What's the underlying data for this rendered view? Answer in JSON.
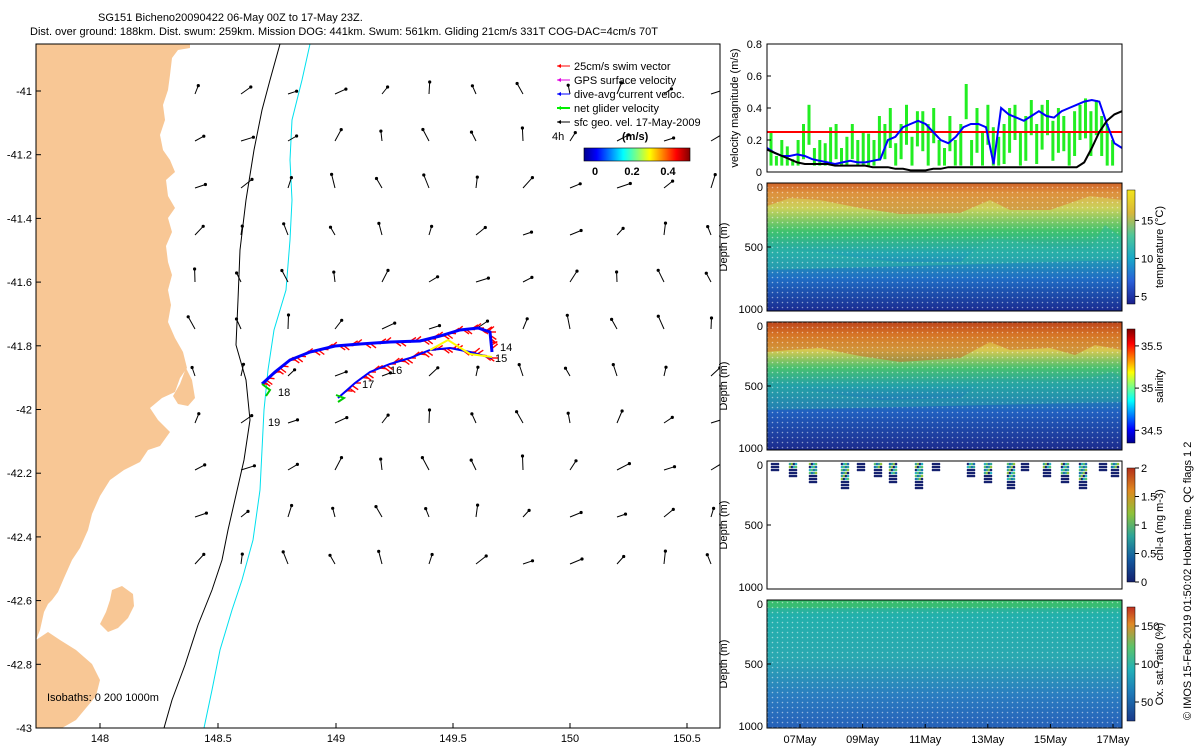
{
  "header": {
    "line1": "SG151 Bicheno20090422 06-May 00Z to 17-May 23Z.",
    "line2": "Dist. over ground: 188km. Dist. swum: 259km. Mission DOG: 441km. Swum: 561km. Gliding 21cm/s 331T COG-DAC=4cm/s 70T"
  },
  "credit": "© IMOS 15-Feb-2019 01:50:02 Hobart time. QC flags 1  2",
  "colors": {
    "land": "#f8c795",
    "swim": "#ff0000",
    "gps": "#e000e0",
    "dac": "#0000ff",
    "net": "#00ee00",
    "geo": "#000000",
    "isobath200": "#000000",
    "isobath1000": "#00e0ee"
  },
  "map": {
    "x_ticks": [
      "148",
      "148.5",
      "149",
      "149.5",
      "150",
      "150.5"
    ],
    "y_ticks": [
      "-41",
      "-41.2",
      "-41.4",
      "-41.6",
      "-41.8",
      "-42",
      "-42.2",
      "-42.4",
      "-42.6",
      "-42.8",
      "-43"
    ],
    "legend": [
      "25cm/s swim vector",
      "GPS surface velocity",
      "dive-avg current veloc.",
      "net glider velocity",
      "sfc geo. vel. 17-May-2009"
    ],
    "colorbar": {
      "label_left": "4h",
      "title": "(m/s)",
      "ticks": [
        "0",
        "0.2",
        "0.4"
      ]
    },
    "isobath_label": "Isobaths: 0   200   1000m",
    "track_labels": [
      "14",
      "15",
      "16",
      "17",
      "18",
      "19"
    ]
  },
  "chart_data": [
    {
      "type": "line",
      "ylabel": "velocity magnitude (m/s)",
      "ylim": [
        0,
        0.8
      ],
      "yticks": [
        "0",
        "0.2",
        "0.4",
        "0.6",
        "0.8"
      ],
      "reference_line": 0.25,
      "dac_series": [
        0.15,
        0.12,
        0.1,
        0.1,
        0.11,
        0.1,
        0.08,
        0.07,
        0.06,
        0.05,
        0.06,
        0.07,
        0.06,
        0.06,
        0.07,
        0.08,
        0.2,
        0.22,
        0.28,
        0.3,
        0.32,
        0.3,
        0.25,
        0.2,
        0.18,
        0.22,
        0.28,
        0.3,
        0.3,
        0.28,
        0.05,
        0.4,
        0.36,
        0.34,
        0.32,
        0.35,
        0.38,
        0.35,
        0.34,
        0.38,
        0.4,
        0.42,
        0.44,
        0.45,
        0.44,
        0.3,
        0.18,
        0.15
      ],
      "geo_series": [
        0.14,
        0.12,
        0.1,
        0.08,
        0.06,
        0.05,
        0.05,
        0.05,
        0.05,
        0.04,
        0.04,
        0.04,
        0.04,
        0.04,
        0.03,
        0.03,
        0.03,
        0.02,
        0.02,
        0.01,
        0.01,
        0.01,
        0.02,
        0.02,
        0.03,
        0.03,
        0.03,
        0.03,
        0.03,
        0.03,
        0.03,
        0.03,
        0.03,
        0.03,
        0.03,
        0.03,
        0.03,
        0.03,
        0.03,
        0.03,
        0.03,
        0.03,
        0.06,
        0.15,
        0.25,
        0.32,
        0.36,
        0.38
      ],
      "net_peaks": [
        0.25,
        0.1,
        0.2,
        0.16,
        0.08,
        0.2,
        0.3,
        0.42,
        0.15,
        0.2,
        0.18,
        0.28,
        0.3,
        0.15,
        0.22,
        0.3,
        0.2,
        0.25,
        0.24,
        0.2,
        0.35,
        0.3,
        0.4,
        0.18,
        0.3,
        0.42,
        0.22,
        0.38,
        0.38,
        0.3,
        0.4,
        0.2,
        0.15,
        0.35,
        0.2,
        0.3,
        0.55,
        0.2,
        0.4,
        0.25,
        0.42,
        0.28,
        0.22,
        0.3,
        0.4,
        0.42,
        0.25,
        0.35,
        0.45,
        0.3,
        0.42,
        0.45,
        0.32,
        0.4,
        0.35,
        0.25,
        0.38,
        0.42,
        0.46,
        0.38,
        0.45,
        0.35,
        0.3,
        0.2
      ]
    },
    {
      "type": "heatmap",
      "ylabel": "Depth (m)",
      "colorbar_label": "temperature (°C)",
      "colorbar_ticks": [
        "5",
        "10",
        "15"
      ],
      "range": [
        4,
        19
      ],
      "yticks": [
        "0",
        "500",
        "1000"
      ]
    },
    {
      "type": "heatmap",
      "ylabel": "Depth (m)",
      "colorbar_label": "salinity",
      "colorbar_ticks": [
        "34.5",
        "35",
        "35.5"
      ],
      "range": [
        34.35,
        35.7
      ],
      "yticks": [
        "0",
        "500",
        "1000"
      ]
    },
    {
      "type": "scatter",
      "ylabel": "Depth (m)",
      "colorbar_label": "chl-a (mg m-3)",
      "colorbar_ticks": [
        "0",
        "0.5",
        "1",
        "1.5",
        "2"
      ],
      "range": [
        0,
        2
      ],
      "yticks": [
        "0",
        "500",
        "1000"
      ]
    },
    {
      "type": "heatmap",
      "ylabel": "Depth (m)",
      "colorbar_label": "Ox. sat. ratio (%)",
      "colorbar_ticks": [
        "50",
        "100",
        "150"
      ],
      "range": [
        25,
        175
      ],
      "yticks": [
        "0",
        "500",
        "1000"
      ],
      "x_ticks": [
        "07May",
        "09May",
        "11May",
        "13May",
        "15May",
        "17May"
      ]
    }
  ]
}
